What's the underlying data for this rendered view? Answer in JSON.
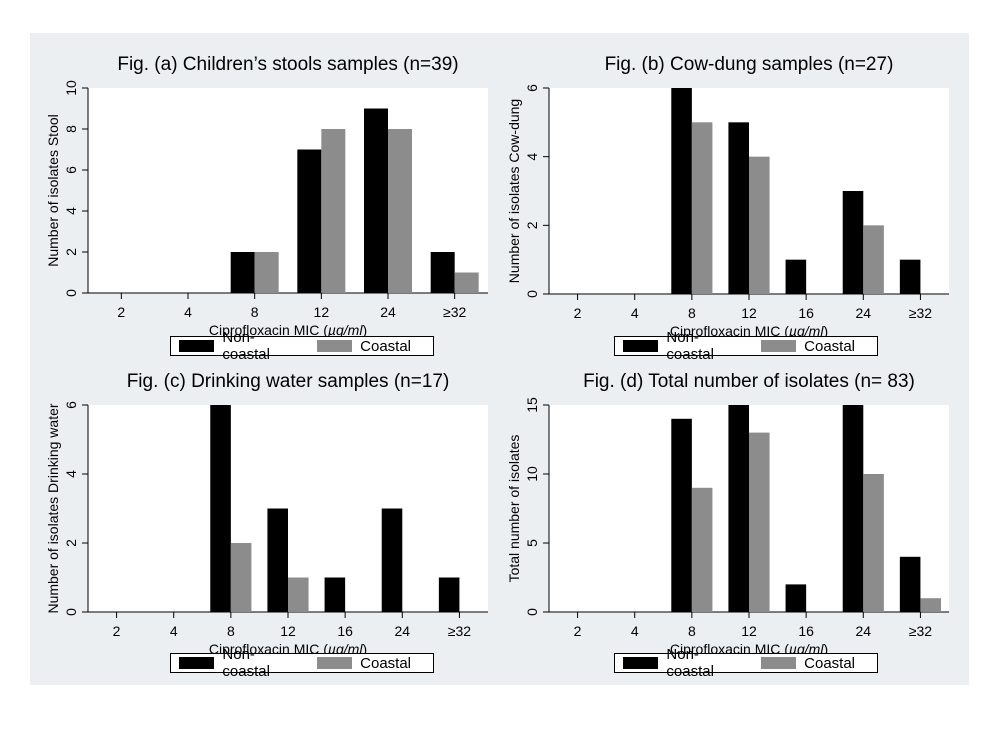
{
  "colors": {
    "non_coastal": "#000000",
    "coastal": "#8c8c8c",
    "panel_bg": "#ebeff2",
    "plot_bg": "#ffffff"
  },
  "chart_data": [
    {
      "type": "bar",
      "title": "Fig. (a) Children’s stools samples (n=39)",
      "xlabel_prefix": "Ciprofloxacin MIC (",
      "xlabel_unit": "µg/ml",
      "xlabel_suffix": ")",
      "ylabel": "Number of isolates Stool",
      "categories": [
        "2",
        "4",
        "8",
        "12",
        "24",
        "≥32"
      ],
      "series": [
        {
          "name": "Non-coastal",
          "values": [
            0,
            0,
            2,
            7,
            9,
            2
          ]
        },
        {
          "name": "Coastal",
          "values": [
            0,
            0,
            2,
            8,
            8,
            1
          ]
        }
      ],
      "ylim": [
        0,
        10
      ],
      "yticks": [
        0,
        2,
        4,
        6,
        8,
        10
      ],
      "legend": "bottom"
    },
    {
      "type": "bar",
      "title": "Fig. (b) Cow-dung samples (n=27)",
      "xlabel_prefix": "Ciprofloxacin MIC (",
      "xlabel_unit": "µg/ml",
      "xlabel_suffix": ")",
      "ylabel": "Number of isolates Cow-dung",
      "categories": [
        "2",
        "4",
        "8",
        "12",
        "16",
        "24",
        "≥32"
      ],
      "series": [
        {
          "name": "Non-coastal",
          "values": [
            0,
            0,
            6,
            5,
            1,
            3,
            1
          ]
        },
        {
          "name": "Coastal",
          "values": [
            0,
            0,
            5,
            4,
            0,
            2,
            0
          ]
        }
      ],
      "ylim": [
        0,
        6
      ],
      "yticks": [
        0,
        2,
        4,
        6
      ],
      "legend": "bottom"
    },
    {
      "type": "bar",
      "title": "Fig. (c) Drinking water samples (n=17)",
      "xlabel_prefix": "Ciprofloxacin MIC (",
      "xlabel_unit": "µg/ml",
      "xlabel_suffix": ")",
      "ylabel": "Number of isolates Drinking water",
      "categories": [
        "2",
        "4",
        "8",
        "12",
        "16",
        "24",
        "≥32"
      ],
      "series": [
        {
          "name": "Non-coastal",
          "values": [
            0,
            0,
            6,
            3,
            1,
            3,
            1
          ]
        },
        {
          "name": "Coastal",
          "values": [
            0,
            0,
            2,
            1,
            0,
            0,
            0
          ]
        }
      ],
      "ylim": [
        0,
        6
      ],
      "yticks": [
        0,
        2,
        4,
        6
      ],
      "legend": "bottom"
    },
    {
      "type": "bar",
      "title": "Fig. (d) Total number of isolates (n= 83)",
      "xlabel_prefix": "Ciprofloxacin MIC (",
      "xlabel_unit": "µg/ml",
      "xlabel_suffix": ")",
      "ylabel": "Total number of isolates",
      "categories": [
        "2",
        "4",
        "8",
        "12",
        "16",
        "24",
        "≥32"
      ],
      "series": [
        {
          "name": "Non-coastal",
          "values": [
            0,
            0,
            14,
            15,
            2,
            15,
            4
          ]
        },
        {
          "name": "Coastal",
          "values": [
            0,
            0,
            9,
            13,
            0,
            10,
            1
          ]
        }
      ],
      "ylim": [
        0,
        15
      ],
      "yticks": [
        0,
        5,
        10,
        15
      ],
      "legend": "bottom"
    }
  ]
}
